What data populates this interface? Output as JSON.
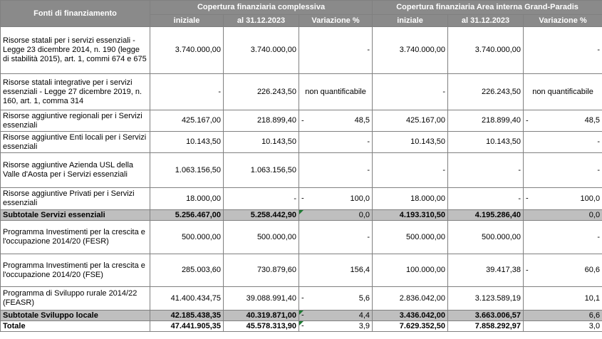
{
  "header": {
    "row_label": "Fonti di finanziamento",
    "group1": "Copertura finanziaria complessiva",
    "group2": "Copertura finanziaria  Area interna Grand-Paradis",
    "columns": [
      "iniziale",
      "al 31.12.2023",
      "Variazione %",
      "iniziale",
      "al 31.12.2023",
      "Variazione %"
    ]
  },
  "rows": [
    {
      "label": "Risorse statali per i servizi essenziali - Legge 23 dicembre 2014, n. 190 (legge di stabilità 2015), art. 1, commi 674 e 675",
      "c1": "3.740.000,00",
      "c2": "3.740.000,00",
      "c3": "-",
      "c4": "3.740.000,00",
      "c5": "3.740.000,00",
      "c6": "-"
    },
    {
      "label": "Risorse statali integrative per i servizi essenziali - Legge 27 dicembre 2019, n. 160, art. 1, comma 314",
      "c1": "-",
      "c2": "226.243,50",
      "c3": "non quantificabile",
      "c4": "-",
      "c5": "226.243,50",
      "c6": "non quantificabile"
    },
    {
      "label": "Risorse aggiuntive regionali per i Servizi essenziali",
      "c1": "425.167,00",
      "c2": "218.899,40",
      "c3_prefix": "-",
      "c3": "48,5",
      "c4": "425.167,00",
      "c5": "218.899,40",
      "c6_prefix": "-",
      "c6": "48,5"
    },
    {
      "label": "Risorse aggiuntive Enti locali per i Servizi essenziali",
      "c1": "10.143,50",
      "c2": "10.143,50",
      "c3": "-",
      "c4": "10.143,50",
      "c5": "10.143,50",
      "c6": "-"
    },
    {
      "label": "Risorse aggiuntive Azienda USL della Valle d'Aosta per i Servizi essenziali",
      "c1": "1.063.156,50",
      "c2": "1.063.156,50",
      "c3": "-",
      "c4": "-",
      "c5": "-",
      "c6": "-"
    },
    {
      "label": "Risorse aggiuntive Privati per i Servizi essenziali",
      "c1": "18.000,00",
      "c2": "-",
      "c3_prefix": "-",
      "c3": "100,0",
      "c4": "18.000,00",
      "c5": "-",
      "c6_prefix": "-",
      "c6": "100,0"
    },
    {
      "label": "Subtotale Servizi essenziali",
      "c1": "5.256.467,00",
      "c2": "5.258.442,90",
      "c3": "0,0",
      "c4": "4.193.310,50",
      "c5": "4.195.286,40",
      "c6": "0,0"
    },
    {
      "label": "Programma Investimenti per la crescita e l'occupazione 2014/20 (FESR)",
      "c1": "500.000,00",
      "c2": "500.000,00",
      "c3": "-",
      "c4": "500.000,00",
      "c5": "500.000,00",
      "c6": "-"
    },
    {
      "label": "Programma Investimenti per la crescita e l'occupazione 2014/20 (FSE)",
      "c1": "285.003,60",
      "c2": "730.879,60",
      "c3": "156,4",
      "c4": "100.000,00",
      "c5": "39.417,38",
      "c6_prefix": "-",
      "c6": "60,6"
    },
    {
      "label": "Programma di Sviluppo rurale 2014/22 (FEASR)",
      "c1": "41.400.434,75",
      "c2": "39.088.991,40",
      "c3_prefix": "-",
      "c3": "5,6",
      "c4": "2.836.042,00",
      "c5": "3.123.589,19",
      "c6": "10,1"
    },
    {
      "label": "Subtotale Sviluppo locale",
      "c1": "42.185.438,35",
      "c2": "40.319.871,00",
      "c3_prefix": "-",
      "c3": "4,4",
      "c4": "3.436.042,00",
      "c5": "3.663.006,57",
      "c6": "6,6"
    },
    {
      "label": "Totale",
      "c1": "47.441.905,35",
      "c2": "45.578.313,90",
      "c3_prefix": "-",
      "c3": "3,9",
      "c4": "7.629.352,50",
      "c5": "7.858.292,97",
      "c6": "3,0"
    }
  ]
}
